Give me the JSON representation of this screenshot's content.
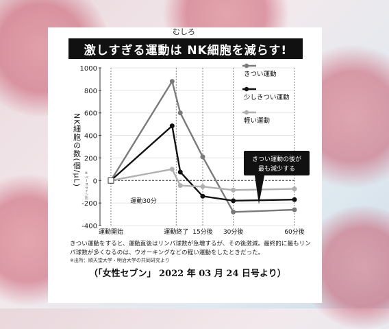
{
  "title": "激しすぎる運動は NK細胞を減らす!",
  "ruby": "むしろ",
  "caption": "きつい運動をすると、運動直後はリンパ球数が急増するが、その後激減。最終的に最もリンパ球数が多くなるのは、ウオーキングなどの軽い運動をしたときだった。",
  "source": "※出所：順天堂大学・明治大学の共同研究より",
  "magazine_credit": "（「女性セブン」 2022 年 03 月 24 日号より）",
  "annotation": {
    "line1": "きつい運動の後が",
    "line2": "最も減少する"
  },
  "period_label": "運動30分",
  "colors": {
    "hard": "#7a7a7a",
    "medium": "#111111",
    "light": "#b0b0b0",
    "accent": "#111111"
  },
  "chart_data": {
    "type": "line",
    "ylabel": "NK細胞の数(個/μL)",
    "ylabel_small": "※ベースライン比",
    "ylim": [
      -400,
      1000
    ],
    "yticks": [
      -400,
      -200,
      0,
      200,
      400,
      600,
      800,
      1000
    ],
    "ytick_labels": [
      "-400",
      "-200",
      "0",
      "200",
      "400",
      "600",
      "800",
      "1000"
    ],
    "x": [
      0,
      30,
      34,
      45,
      60,
      90
    ],
    "xticks": [
      {
        "x": 0,
        "label": "運動開始"
      },
      {
        "x": 32,
        "label": "運動終了"
      },
      {
        "x": 45,
        "label": "15分後"
      },
      {
        "x": 60,
        "label": "30分後"
      },
      {
        "x": 90,
        "label": "60分後"
      }
    ],
    "series": [
      {
        "name": "きつい運動",
        "values": [
          0,
          880,
          600,
          210,
          -280,
          -260
        ]
      },
      {
        "name": "少しきつい運動",
        "values": [
          0,
          485,
          75,
          -140,
          -180,
          -170
        ]
      },
      {
        "name": "軽い運動",
        "values": [
          0,
          100,
          -45,
          -55,
          -85,
          -75
        ]
      }
    ]
  }
}
